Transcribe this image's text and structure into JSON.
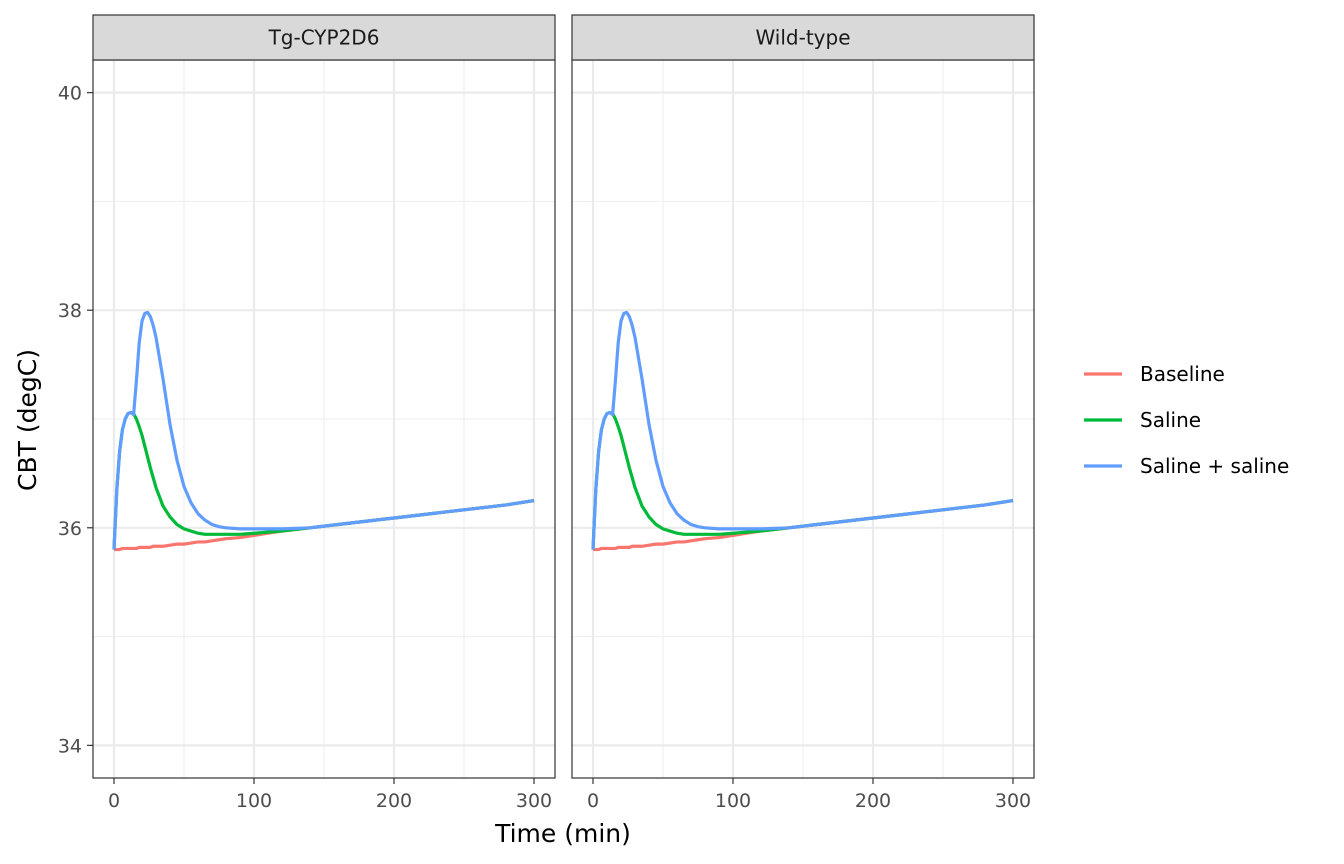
{
  "chart_data": {
    "type": "line",
    "title": "",
    "xlabel": "Time (min)",
    "ylabel": "CBT (degC)",
    "xlim": [
      -15,
      315
    ],
    "ylim": [
      33.7,
      40.3
    ],
    "x_ticks": [
      0,
      100,
      200,
      300
    ],
    "x_tick_labels": [
      "0",
      "100",
      "200",
      "300"
    ],
    "y_ticks": [
      34,
      36,
      38,
      40
    ],
    "y_tick_labels": [
      "34",
      "36",
      "38",
      "40"
    ],
    "grid": true,
    "legend_position": "right",
    "colors": {
      "Baseline": "#F8766D",
      "Saline": "#00BA38",
      "Saline + saline": "#619CFF"
    },
    "x": [
      0,
      2,
      4,
      6,
      8,
      10,
      12,
      14,
      16,
      18,
      20,
      22,
      24,
      26,
      28,
      30,
      35,
      40,
      45,
      50,
      55,
      60,
      65,
      70,
      75,
      80,
      90,
      100,
      110,
      120,
      140,
      160,
      180,
      200,
      220,
      240,
      260,
      280,
      300
    ],
    "panels": [
      {
        "name": "Tg-CYP2D6",
        "series": [
          {
            "name": "Baseline",
            "values": [
              35.8,
              35.8,
              35.8,
              35.81,
              35.81,
              35.81,
              35.81,
              35.81,
              35.81,
              35.82,
              35.82,
              35.82,
              35.82,
              35.82,
              35.83,
              35.83,
              35.83,
              35.84,
              35.85,
              35.85,
              35.86,
              35.87,
              35.87,
              35.88,
              35.89,
              35.9,
              35.91,
              35.93,
              35.95,
              35.97,
              36.0,
              36.03,
              36.06,
              36.09,
              36.12,
              36.15,
              36.18,
              36.21,
              36.25
            ]
          },
          {
            "name": "Saline",
            "values": [
              35.8,
              36.35,
              36.7,
              36.9,
              37.0,
              37.05,
              37.06,
              37.05,
              37.0,
              36.93,
              36.85,
              36.75,
              36.65,
              36.55,
              36.46,
              36.37,
              36.2,
              36.1,
              36.03,
              35.99,
              35.97,
              35.95,
              35.94,
              35.94,
              35.94,
              35.94,
              35.94,
              35.95,
              35.96,
              35.97,
              36.0,
              36.03,
              36.06,
              36.09,
              36.12,
              36.15,
              36.18,
              36.21,
              36.25
            ]
          },
          {
            "name": "Saline + saline",
            "values": [
              35.8,
              36.35,
              36.7,
              36.9,
              37.0,
              37.05,
              37.06,
              37.04,
              37.35,
              37.7,
              37.9,
              37.97,
              37.98,
              37.94,
              37.86,
              37.75,
              37.37,
              36.95,
              36.62,
              36.38,
              36.23,
              36.13,
              36.07,
              36.03,
              36.01,
              36.0,
              35.99,
              35.99,
              35.99,
              35.99,
              36.0,
              36.03,
              36.06,
              36.09,
              36.12,
              36.15,
              36.18,
              36.21,
              36.25
            ]
          }
        ]
      },
      {
        "name": "Wild-type",
        "series": [
          {
            "name": "Baseline",
            "values": [
              35.8,
              35.8,
              35.8,
              35.81,
              35.81,
              35.81,
              35.81,
              35.81,
              35.81,
              35.82,
              35.82,
              35.82,
              35.82,
              35.82,
              35.83,
              35.83,
              35.83,
              35.84,
              35.85,
              35.85,
              35.86,
              35.87,
              35.87,
              35.88,
              35.89,
              35.9,
              35.91,
              35.93,
              35.95,
              35.97,
              36.0,
              36.03,
              36.06,
              36.09,
              36.12,
              36.15,
              36.18,
              36.21,
              36.25
            ]
          },
          {
            "name": "Saline",
            "values": [
              35.8,
              36.35,
              36.7,
              36.9,
              37.0,
              37.05,
              37.06,
              37.05,
              37.0,
              36.93,
              36.85,
              36.75,
              36.65,
              36.55,
              36.46,
              36.37,
              36.2,
              36.1,
              36.03,
              35.99,
              35.97,
              35.95,
              35.94,
              35.94,
              35.94,
              35.94,
              35.94,
              35.95,
              35.96,
              35.97,
              36.0,
              36.03,
              36.06,
              36.09,
              36.12,
              36.15,
              36.18,
              36.21,
              36.25
            ]
          },
          {
            "name": "Saline + saline",
            "values": [
              35.8,
              36.35,
              36.7,
              36.9,
              37.0,
              37.05,
              37.06,
              37.04,
              37.35,
              37.7,
              37.9,
              37.97,
              37.98,
              37.94,
              37.86,
              37.75,
              37.37,
              36.95,
              36.62,
              36.38,
              36.23,
              36.13,
              36.07,
              36.03,
              36.01,
              36.0,
              35.99,
              35.99,
              35.99,
              35.99,
              36.0,
              36.03,
              36.06,
              36.09,
              36.12,
              36.15,
              36.18,
              36.21,
              36.25
            ]
          }
        ]
      }
    ]
  }
}
